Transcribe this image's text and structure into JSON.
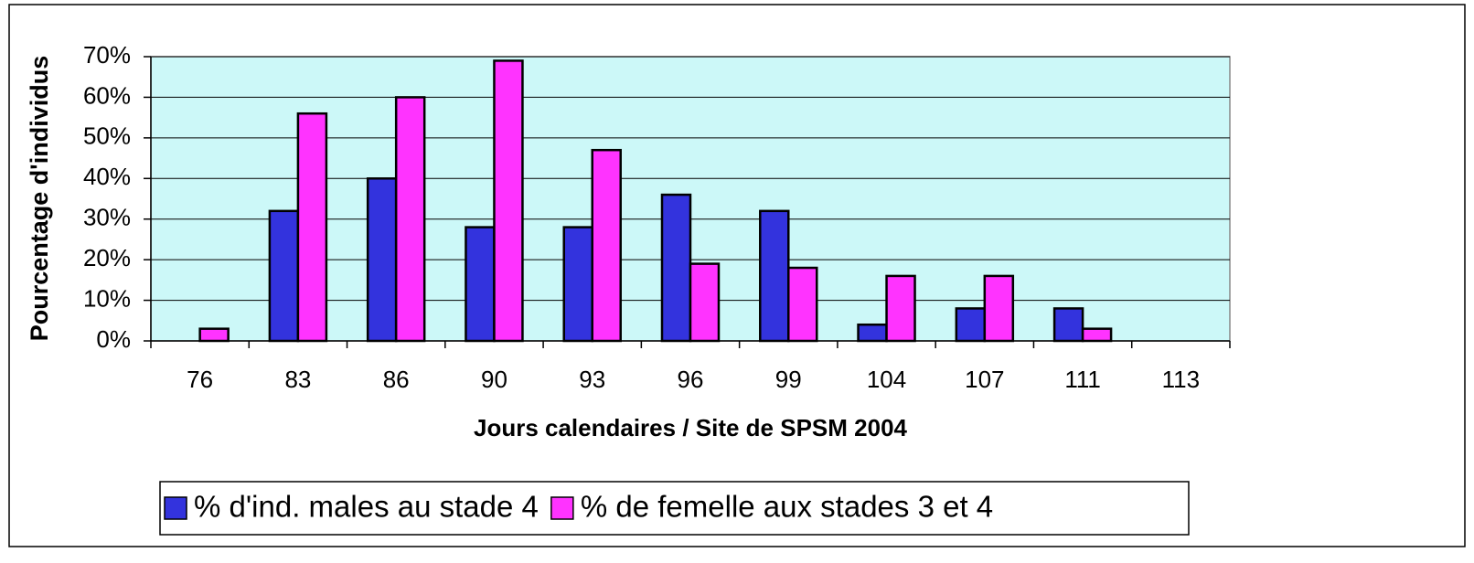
{
  "chart_data": {
    "type": "bar",
    "y_label": "Pourcentage d'individus",
    "x_label": "Jours calendaires / Site de SPSM 2004",
    "categories": [
      "76",
      "83",
      "86",
      "90",
      "93",
      "96",
      "99",
      "104",
      "107",
      "111",
      "113"
    ],
    "series": [
      {
        "name": "% d'ind. males au stade 4",
        "color": "#3333dd",
        "values": [
          0,
          32,
          40,
          28,
          28,
          36,
          32,
          4,
          8,
          8,
          0
        ]
      },
      {
        "name": "% de femelle aux stades 3 et 4",
        "color": "#ff33ff",
        "values": [
          3,
          56,
          60,
          69,
          47,
          19,
          18,
          16,
          16,
          3,
          0
        ]
      }
    ],
    "ylim": [
      0,
      70
    ],
    "yticks": [
      {
        "value": 0,
        "label": "0%"
      },
      {
        "value": 10,
        "label": "10%"
      },
      {
        "value": 20,
        "label": "20%"
      },
      {
        "value": 30,
        "label": "30%"
      },
      {
        "value": 40,
        "label": "40%"
      },
      {
        "value": 50,
        "label": "50%"
      },
      {
        "value": 60,
        "label": "60%"
      },
      {
        "value": 70,
        "label": "70%"
      }
    ],
    "grid": true,
    "background": "#ccf8f8"
  }
}
